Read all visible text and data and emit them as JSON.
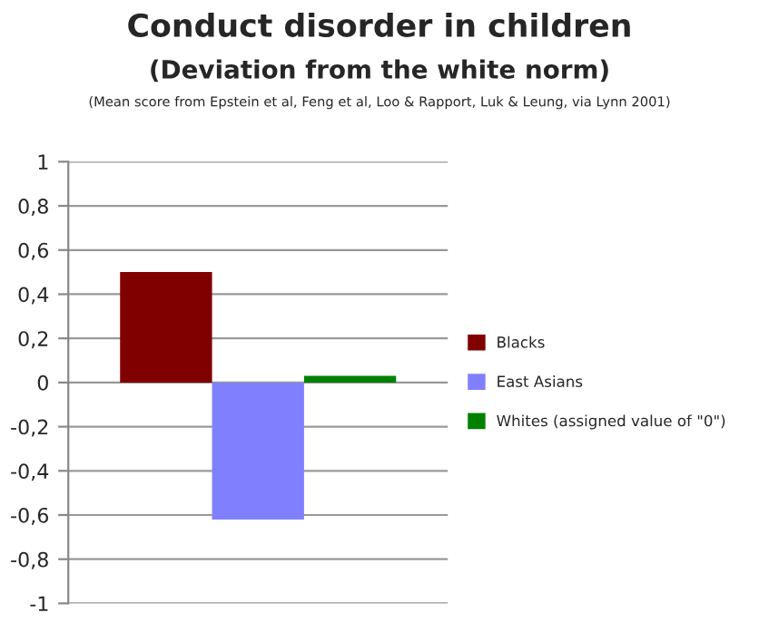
{
  "chart_data": {
    "type": "bar",
    "title": "Conduct disorder in children",
    "subtitle": "(Deviation from the white norm)",
    "annotations": [
      "(Mean score from Epstein et al, Feng et al, Loo & Rapport, Luk & Leung, via Lynn 2001)"
    ],
    "categories": [
      null
    ],
    "series": [
      {
        "name": "Blacks",
        "color": "#800000",
        "values": [
          0.5
        ]
      },
      {
        "name": "East Asians",
        "color": "#8080ff",
        "values": [
          -0.62
        ]
      },
      {
        "name": "Whites (assigned value of \"0\")",
        "color": "#008000",
        "values": [
          0.03
        ]
      }
    ],
    "ylim": [
      -1,
      1
    ],
    "yticks": [
      {
        "value": -1,
        "label": "-1"
      },
      {
        "value": -0.8,
        "label": "-0,8"
      },
      {
        "value": -0.6,
        "label": "-0,6"
      },
      {
        "value": -0.4,
        "label": "-0,4"
      },
      {
        "value": -0.2,
        "label": "-0,2"
      },
      0,
      {
        "value": 0.2,
        "label": "0,2"
      },
      {
        "value": 0.4,
        "label": "0,4"
      },
      {
        "value": 0.6,
        "label": "0,6"
      },
      {
        "value": 0.8,
        "label": "0,8"
      },
      1
    ],
    "grid": "y",
    "legend": "right"
  }
}
